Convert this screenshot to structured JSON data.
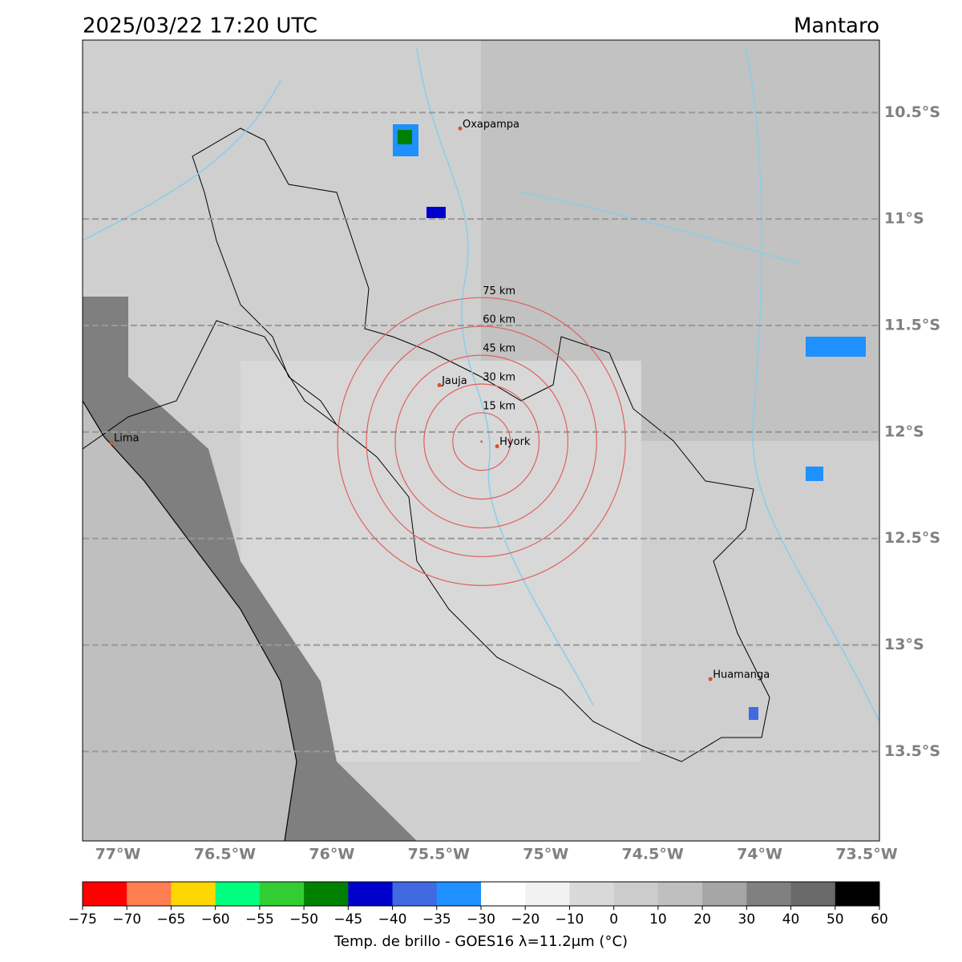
{
  "map": {
    "title": "2025/03/22 17:20 UTC",
    "region": "Mantaro",
    "lon_range": [
      -77.165,
      -73.44
    ],
    "lat_range": [
      -10.16,
      -13.92
    ],
    "lat_ticks": [
      {
        "value": -10.5,
        "label": "10.5°S"
      },
      {
        "value": -11,
        "label": "11°S"
      },
      {
        "value": -11.5,
        "label": "11.5°S"
      },
      {
        "value": -12,
        "label": "12°S"
      },
      {
        "value": -12.5,
        "label": "12.5°S"
      },
      {
        "value": -13,
        "label": "13°S"
      },
      {
        "value": -13.5,
        "label": "13.5°S"
      }
    ],
    "lon_ticks": [
      {
        "value": -77,
        "label": "77°W"
      },
      {
        "value": -76.5,
        "label": "76.5°W"
      },
      {
        "value": -76,
        "label": "76°W"
      },
      {
        "value": -75.5,
        "label": "75.5°W"
      },
      {
        "value": -75,
        "label": "75°W"
      },
      {
        "value": -74.5,
        "label": "74.5°W"
      },
      {
        "value": -74,
        "label": "74°W"
      },
      {
        "value": -73.5,
        "label": "73.5°W"
      }
    ],
    "cities": [
      {
        "name": "Oxapampa",
        "lon": -75.4,
        "lat": -10.575
      },
      {
        "name": "Jauja",
        "lon": -75.497,
        "lat": -11.78
      },
      {
        "name": "Hyork",
        "lon": -75.227,
        "lat": -12.067
      },
      {
        "name": "Lima",
        "lon": -77.03,
        "lat": -12.05
      },
      {
        "name": "Huamanga",
        "lon": -74.23,
        "lat": -13.16
      }
    ],
    "ring_center": {
      "lon": -75.3,
      "lat": -12.045
    },
    "rings": [
      {
        "radius": 15,
        "label": "15 km"
      },
      {
        "radius": 30,
        "label": "30 km"
      },
      {
        "radius": 45,
        "label": "45 km"
      },
      {
        "radius": 60,
        "label": "60 km"
      },
      {
        "radius": 75,
        "label": "75 km"
      }
    ]
  },
  "colorbar": {
    "label": "Temp. de brillo - GOES16 λ=11.2μm (°C)",
    "ticks": [
      {
        "value": -75,
        "label": "−75"
      },
      {
        "value": -70,
        "label": "−70"
      },
      {
        "value": -65,
        "label": "−65"
      },
      {
        "value": -60,
        "label": "−60"
      },
      {
        "value": -55,
        "label": "−55"
      },
      {
        "value": -50,
        "label": "−50"
      },
      {
        "value": -45,
        "label": "−45"
      },
      {
        "value": -40,
        "label": "−40"
      },
      {
        "value": -35,
        "label": "−35"
      },
      {
        "value": -30,
        "label": "−30"
      },
      {
        "value": -20,
        "label": "−20"
      },
      {
        "value": -10,
        "label": "−10"
      },
      0,
      10,
      20,
      30,
      40,
      50,
      60
    ],
    "colors": [
      "#ff0000",
      "#ff7f50",
      "#ffd700",
      "#00ff7f",
      "#32cd32",
      "#008000",
      "#0000cd",
      "#4169e1",
      "#1e90ff",
      "#ffffff",
      "#f2f2f2",
      "#d9d9d9",
      "#cccccc",
      "#bfbfbf",
      "#a6a6a6",
      "#808080",
      "#696969",
      "#000000"
    ]
  }
}
